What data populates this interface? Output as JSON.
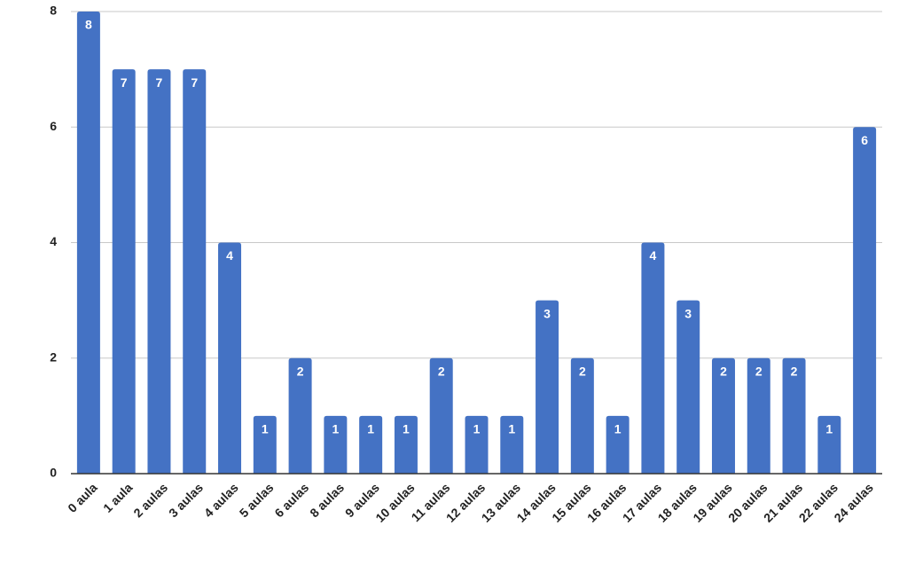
{
  "chart_data": {
    "type": "bar",
    "categories": [
      "0 aula",
      "1 aula",
      "2 aulas",
      "3 aulas",
      "4 aulas",
      "5 aulas",
      "6 aulas",
      "8 aulas",
      "9 aulas",
      "10 aulas",
      "11 aulas",
      "12 aulas",
      "13 aulas",
      "14 aulas",
      "15 aulas",
      "16 aulas",
      "17 aulas",
      "18 aulas",
      "19 aulas",
      "20 aulas",
      "21 aulas",
      "22 aulas",
      "24 aulas"
    ],
    "values": [
      8,
      7,
      7,
      7,
      4,
      1,
      2,
      1,
      1,
      1,
      2,
      1,
      1,
      3,
      2,
      1,
      4,
      3,
      2,
      2,
      2,
      1,
      6
    ],
    "color": "#4472c4",
    "ylim": [
      0,
      8
    ],
    "yticks": [
      0,
      2,
      4,
      6,
      8
    ],
    "grid": true
  }
}
